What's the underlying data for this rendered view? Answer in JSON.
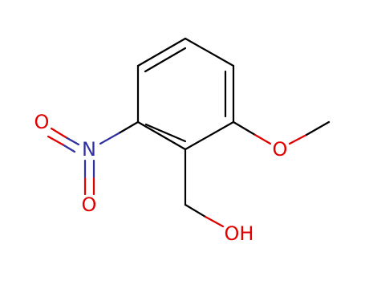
{
  "atoms": [
    "O",
    "N",
    "O",
    "O",
    "OH"
  ]
}
